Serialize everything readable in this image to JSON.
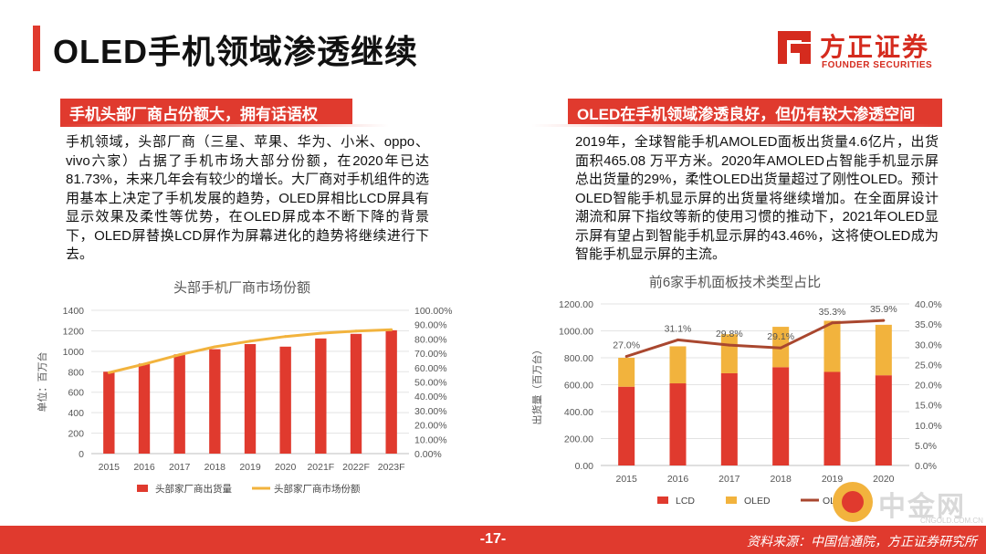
{
  "header": {
    "title": "OLED手机领域渗透继续"
  },
  "logo": {
    "name_cn": "方正证券",
    "name_en": "FOUNDER SECURITIES"
  },
  "left": {
    "heading": "手机头部厂商占份额大，拥有话语权",
    "paragraph": "手机领域，头部厂商（三星、苹果、华为、小米、oppo、vivo六家）占据了手机市场大部分份额，在2020年已达81.73%，未来几年会有较少的增长。大厂商对手机组件的选用基本上决定了手机发展的趋势，OLED屏相比LCD屏具有显示效果及柔性等优势，在OLED屏成本不断下降的背景下，OLED屏替换LCD屏作为屏幕进化的趋势将继续进行下去。"
  },
  "right": {
    "heading": "OLED在手机领域渗透良好，但仍有较大渗透空间",
    "paragraph": "2019年，全球智能手机AMOLED面板出货量4.6亿片，出货面积465.08 万平方米。2020年AMOLED占智能手机显示屏总出货量的29%，柔性OLED出货量超过了刚性OLED。预计OLED智能手机显示屏的出货量将继续增加。在全面屏设计潮流和屏下指纹等新的使用习惯的推动下，2021年OLED显示屏有望占到智能手机显示屏的43.46%，这将使OLED成为智能手机显示屏的主流。"
  },
  "chart_data": [
    {
      "type": "bar",
      "title": "头部手机厂商市场份额",
      "ylabel": "单位：百万台",
      "categories": [
        "2015",
        "2016",
        "2017",
        "2018",
        "2019",
        "2020",
        "2021F",
        "2022F",
        "2023F"
      ],
      "ylim": [
        0,
        1400
      ],
      "yticks": [
        "0",
        "200",
        "400",
        "600",
        "800",
        "1000",
        "1200",
        "1400"
      ],
      "y2lim": [
        0,
        100
      ],
      "y2ticks": [
        "0.00%",
        "10.00%",
        "20.00%",
        "30.00%",
        "40.00%",
        "50.00%",
        "60.00%",
        "70.00%",
        "80.00%",
        "90.00%",
        "100.00%"
      ],
      "series": [
        {
          "name": "头部家厂商出货量",
          "type": "bar",
          "color": "#e03a2e",
          "values": [
            800,
            880,
            970,
            1020,
            1070,
            1045,
            1125,
            1170,
            1205
          ]
        },
        {
          "name": "头部家厂商市场份额",
          "type": "line",
          "axis": "right",
          "color": "#f2b33d",
          "values": [
            56.5,
            62.5,
            69.0,
            74.5,
            78.5,
            81.73,
            84.0,
            85.5,
            86.5
          ]
        }
      ],
      "legend": "bottom",
      "grid": true
    },
    {
      "type": "bar",
      "stacked": true,
      "title": "前6家手机面板技术类型占比",
      "ylabel": "出货量（百万台）",
      "categories": [
        "2015",
        "2016",
        "2017",
        "2018",
        "2019",
        "2020"
      ],
      "ylim": [
        0,
        1200
      ],
      "yticks": [
        "0.00",
        "200.00",
        "400.00",
        "600.00",
        "800.00",
        "1000.00",
        "1200.00"
      ],
      "y2lim": [
        0,
        40
      ],
      "y2ticks": [
        "0.0%",
        "5.0%",
        "10.0%",
        "15.0%",
        "20.0%",
        "25.0%",
        "30.0%",
        "35.0%",
        "40.0%"
      ],
      "series": [
        {
          "name": "LCD",
          "type": "bar",
          "color": "#e03a2e",
          "values": [
            585,
            610,
            685,
            730,
            695,
            670
          ]
        },
        {
          "name": "OLED",
          "type": "bar",
          "color": "#f2b33d",
          "values": [
            215,
            275,
            290,
            300,
            380,
            375
          ]
        },
        {
          "name": "OLED占比",
          "type": "line",
          "axis": "right",
          "color": "#a9472f",
          "values": [
            27.0,
            31.1,
            29.8,
            29.1,
            35.3,
            35.9
          ],
          "labels": [
            "27.0%",
            "31.1%",
            "29.8%",
            "29.1%",
            "35.3%",
            "35.9%"
          ]
        }
      ],
      "legend": "bottom",
      "grid": true
    }
  ],
  "footer": {
    "page": "-17-",
    "source": "资料来源：中国信通院，方正证券研究所"
  },
  "watermark": {
    "name_cn": "中金网",
    "url": "CNGOLD.COM.CN"
  }
}
